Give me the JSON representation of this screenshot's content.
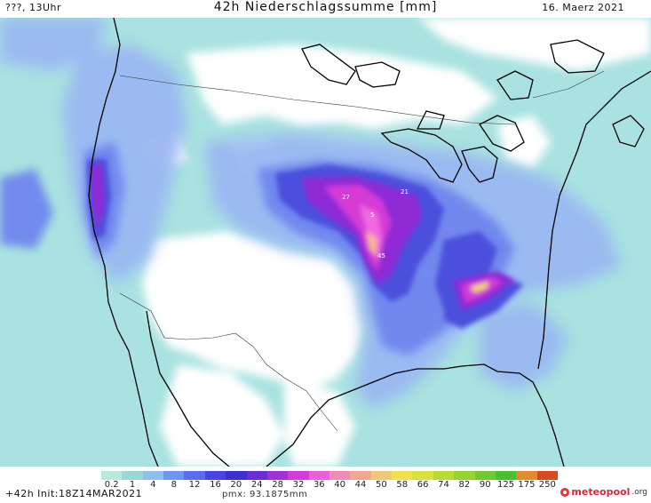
{
  "header": {
    "left": "???, 13Uhr",
    "title": "42h Niederschlagssumme [mm]",
    "date": "16. Maerz 2021"
  },
  "map": {
    "colors": {
      "background": "#ffffff",
      "light_cyan": "#a9e2e0",
      "cyan": "#8fd3d6",
      "light_blue": "#9ab8f2",
      "blue": "#6f86ee",
      "deep_blue": "#4b4fdc",
      "indigo": "#3d2cc8",
      "purple": "#8f2bd6",
      "magenta": "#d63ad6",
      "pink": "#f06ae0",
      "peach": "#f7b98c",
      "yellow": "#f3e23c",
      "coast": "#000000",
      "border": "#333333"
    },
    "point_labels": [
      {
        "text": "27"
      },
      {
        "text": "21"
      },
      {
        "text": "5"
      },
      {
        "text": "45"
      }
    ]
  },
  "legend": {
    "labels": [
      "0.2",
      "1",
      "4",
      "8",
      "12",
      "16",
      "20",
      "24",
      "28",
      "32",
      "36",
      "40",
      "44",
      "50",
      "58",
      "66",
      "74",
      "82",
      "90",
      "125",
      "175",
      "250"
    ],
    "colors": [
      "#b7ead8",
      "#9ad7d6",
      "#8fbfee",
      "#6f96f0",
      "#5a6cf0",
      "#4646e6",
      "#3a2fd2",
      "#6a2ed6",
      "#a42fd6",
      "#d43ad8",
      "#ec5fd8",
      "#f08ab6",
      "#f2a88e",
      "#f3c77a",
      "#f2e04a",
      "#d8e23a",
      "#b6dc34",
      "#94d430",
      "#6ecb2e",
      "#48c22c",
      "#e58a2a",
      "#d94a22"
    ]
  },
  "footer": {
    "init": "+42h Init:18Z14MAR2021",
    "pmx": "pmx: 93.1875mm",
    "logo_main": "meteopool",
    "logo_suffix": ".org"
  }
}
